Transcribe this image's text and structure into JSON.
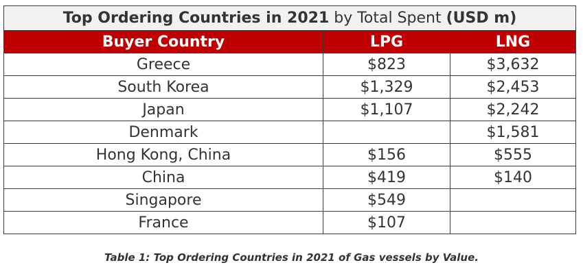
{
  "title": {
    "part1": "Top Ordering Countries in 2021",
    "part2": " by Total Spent ",
    "part3": "(USD m)"
  },
  "columns": [
    "Buyer Country",
    "LPG",
    "LNG"
  ],
  "rows": [
    {
      "country": "Greece",
      "lpg": "$823",
      "lng": "$3,632"
    },
    {
      "country": "South Korea",
      "lpg": "$1,329",
      "lng": "$2,453"
    },
    {
      "country": "Japan",
      "lpg": "$1,107",
      "lng": "$2,242"
    },
    {
      "country": "Denmark",
      "lpg": "",
      "lng": "$1,581"
    },
    {
      "country": "Hong Kong, China",
      "lpg": "$156",
      "lng": "$555"
    },
    {
      "country": "China",
      "lpg": "$419",
      "lng": "$140"
    },
    {
      "country": "Singapore",
      "lpg": "$549",
      "lng": ""
    },
    {
      "country": "France",
      "lpg": "$107",
      "lng": ""
    }
  ],
  "caption": "Table 1: Top Ordering Countries in 2021 of Gas vessels by Value.",
  "colors": {
    "header_bg": "#c00000",
    "title_bg": "#f2f2f2"
  }
}
